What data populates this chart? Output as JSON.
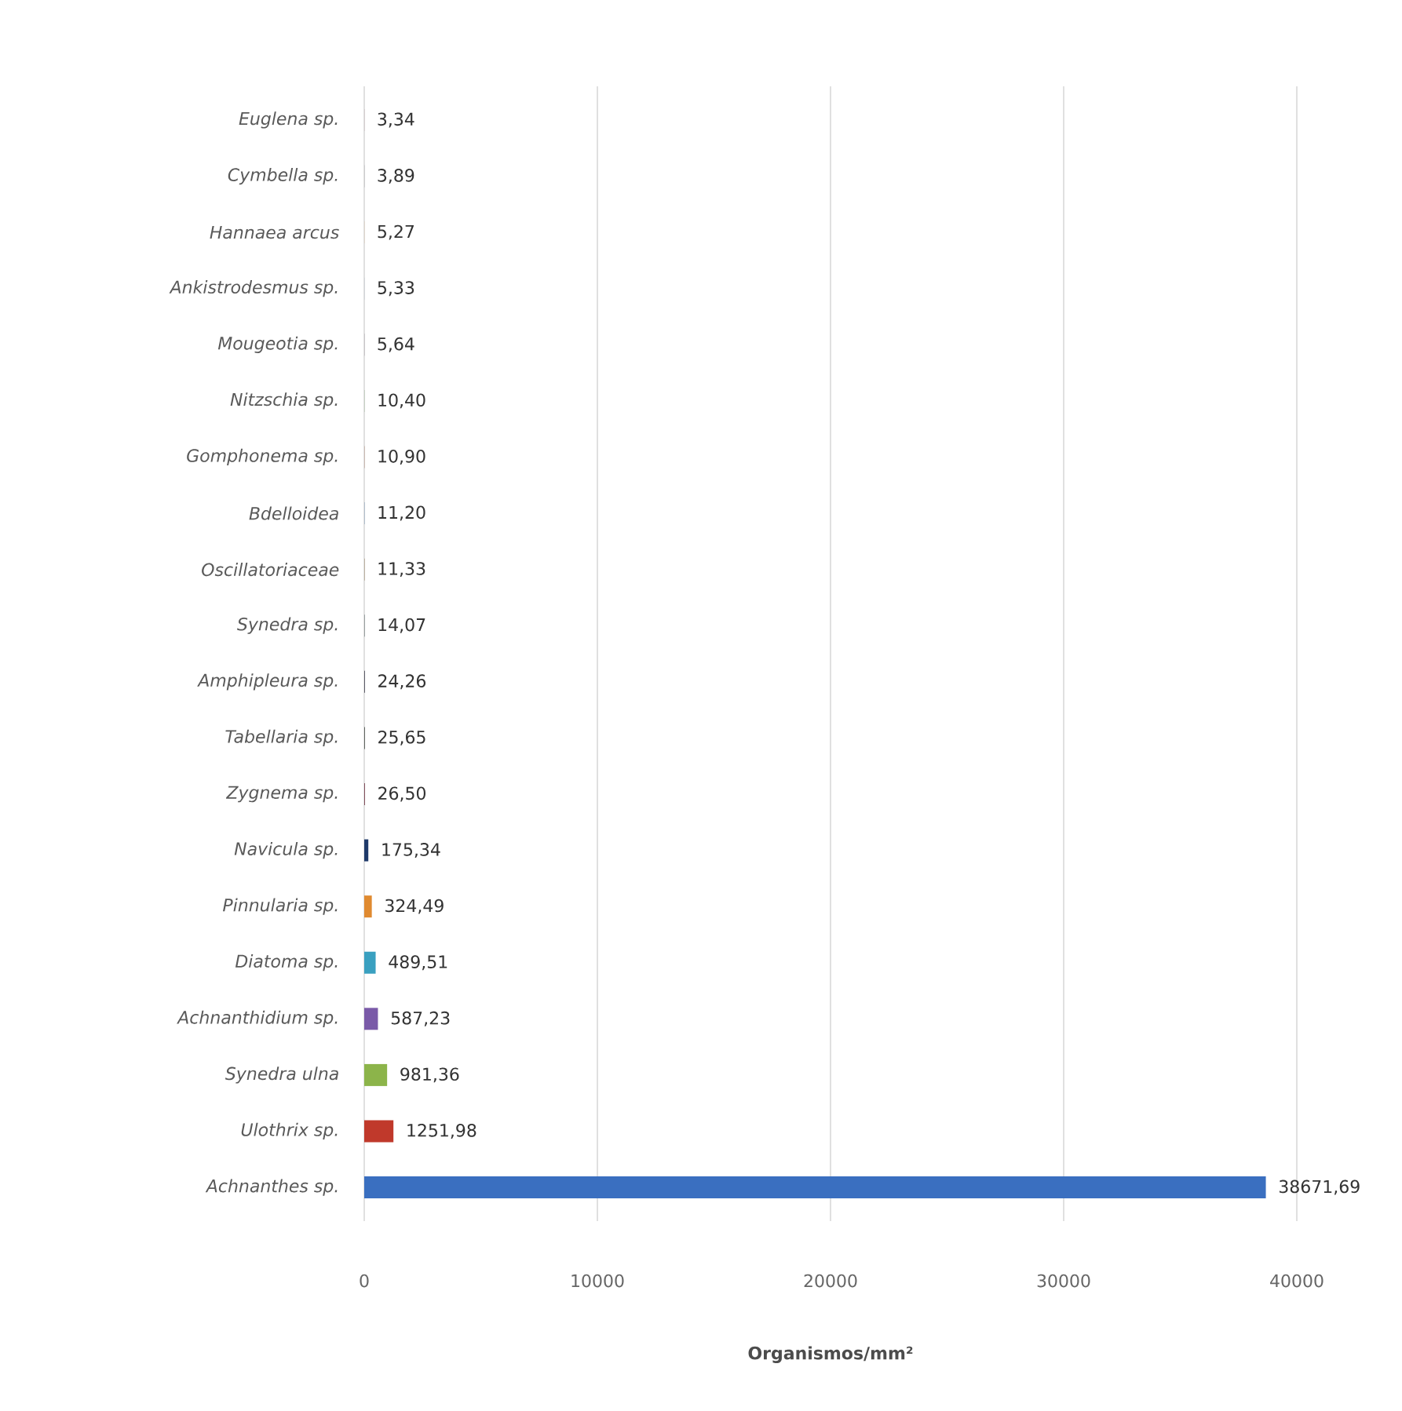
{
  "chart_data": {
    "type": "bar",
    "orientation": "horizontal",
    "xlabel": "Organismos/mm²",
    "categories": [
      "Euglena sp.",
      "Cymbella sp.",
      "Hannaea arcus",
      "Ankistrodesmus sp.",
      "Mougeotia sp.",
      "Nitzschia sp.",
      "Gomphonema sp.",
      "Bdelloidea",
      "Oscillatoriaceae",
      "Synedra sp.",
      "Amphipleura sp.",
      "Tabellaria sp.",
      "Zygnema sp.",
      "Navicula sp.",
      "Pinnularia sp.",
      "Diatoma sp.",
      "Achnanthidium sp.",
      "Synedra ulna",
      "Ulothrix sp.",
      "Achnanthes sp."
    ],
    "values": [
      3.34,
      3.89,
      5.27,
      5.33,
      5.64,
      10.4,
      10.9,
      11.2,
      11.33,
      14.07,
      24.26,
      25.65,
      26.5,
      175.34,
      324.49,
      489.51,
      587.23,
      981.36,
      1251.98,
      38671.69
    ],
    "value_labels": [
      "3,34",
      "3,89",
      "5,27",
      "5,33",
      "5,64",
      "10,40",
      "10,90",
      "11,20",
      "11,33",
      "14,07",
      "24,26",
      "25,65",
      "26,50",
      "175,34",
      "324,49",
      "489,51",
      "587,23",
      "981,36",
      "1251,98",
      "38671,69"
    ],
    "colors": [
      "#7a3b4a",
      "#3a3f4f",
      "#d9a66b",
      "#8fa3b8",
      "#5a4a5a",
      "#8fb08a",
      "#a0705a",
      "#5a7fa8",
      "#7a5a2a",
      "#3a4a4a",
      "#2a2a3a",
      "#3a3f3a",
      "#6a2a3a",
      "#1f3a6a",
      "#e08a30",
      "#3aa0c0",
      "#7a5aa8",
      "#8cb44a",
      "#c0392b",
      "#3a6fc0"
    ],
    "xlim": [
      0,
      40000
    ],
    "xticks": [
      0,
      10000,
      20000,
      30000,
      40000
    ],
    "grid": "x"
  }
}
